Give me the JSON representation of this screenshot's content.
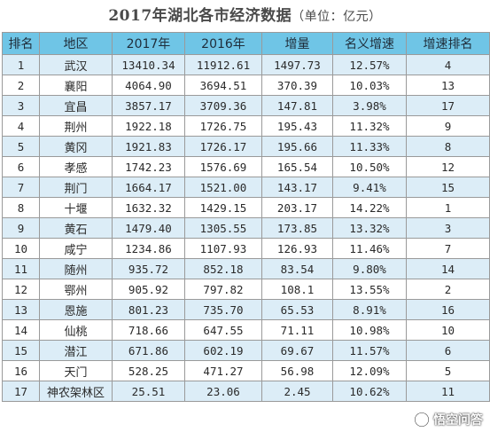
{
  "title": {
    "main": "2017年湖北各市经济数据",
    "unit": "（单位：亿元）"
  },
  "columns": [
    "排名",
    "地区",
    "2017年",
    "2016年",
    "增量",
    "名义增速",
    "增速排名"
  ],
  "rows": [
    {
      "rank": "1",
      "region": "武汉",
      "y2017": "13410.34",
      "y2016": "11912.61",
      "increase": "1497.73",
      "growth": "12.57%",
      "growth_rank": "4"
    },
    {
      "rank": "2",
      "region": "襄阳",
      "y2017": "4064.90",
      "y2016": "3694.51",
      "increase": "370.39",
      "growth": "10.03%",
      "growth_rank": "13"
    },
    {
      "rank": "3",
      "region": "宜昌",
      "y2017": "3857.17",
      "y2016": "3709.36",
      "increase": "147.81",
      "growth": "3.98%",
      "growth_rank": "17"
    },
    {
      "rank": "4",
      "region": "荆州",
      "y2017": "1922.18",
      "y2016": "1726.75",
      "increase": "195.43",
      "growth": "11.32%",
      "growth_rank": "9"
    },
    {
      "rank": "5",
      "region": "黄冈",
      "y2017": "1921.83",
      "y2016": "1726.17",
      "increase": "195.66",
      "growth": "11.33%",
      "growth_rank": "8"
    },
    {
      "rank": "6",
      "region": "孝感",
      "y2017": "1742.23",
      "y2016": "1576.69",
      "increase": "165.54",
      "growth": "10.50%",
      "growth_rank": "12"
    },
    {
      "rank": "7",
      "region": "荆门",
      "y2017": "1664.17",
      "y2016": "1521.00",
      "increase": "143.17",
      "growth": "9.41%",
      "growth_rank": "15"
    },
    {
      "rank": "8",
      "region": "十堰",
      "y2017": "1632.32",
      "y2016": "1429.15",
      "increase": "203.17",
      "growth": "14.22%",
      "growth_rank": "1"
    },
    {
      "rank": "9",
      "region": "黄石",
      "y2017": "1479.40",
      "y2016": "1305.55",
      "increase": "173.85",
      "growth": "13.32%",
      "growth_rank": "3"
    },
    {
      "rank": "10",
      "region": "咸宁",
      "y2017": "1234.86",
      "y2016": "1107.93",
      "increase": "126.93",
      "growth": "11.46%",
      "growth_rank": "7"
    },
    {
      "rank": "11",
      "region": "随州",
      "y2017": "935.72",
      "y2016": "852.18",
      "increase": "83.54",
      "growth": "9.80%",
      "growth_rank": "14"
    },
    {
      "rank": "12",
      "region": "鄂州",
      "y2017": "905.92",
      "y2016": "797.82",
      "increase": "108.1",
      "growth": "13.55%",
      "growth_rank": "2"
    },
    {
      "rank": "13",
      "region": "恩施",
      "y2017": "801.23",
      "y2016": "735.70",
      "increase": "65.53",
      "growth": "8.91%",
      "growth_rank": "16"
    },
    {
      "rank": "14",
      "region": "仙桃",
      "y2017": "718.66",
      "y2016": "647.55",
      "increase": "71.11",
      "growth": "10.98%",
      "growth_rank": "10"
    },
    {
      "rank": "15",
      "region": "潜江",
      "y2017": "671.86",
      "y2016": "602.19",
      "increase": "69.67",
      "growth": "11.57%",
      "growth_rank": "6"
    },
    {
      "rank": "16",
      "region": "天门",
      "y2017": "528.25",
      "y2016": "471.27",
      "increase": "56.98",
      "growth": "12.09%",
      "growth_rank": "5"
    },
    {
      "rank": "17",
      "region": "神农架林区",
      "y2017": "25.51",
      "y2016": "23.06",
      "increase": "2.45",
      "growth": "10.62%",
      "growth_rank": "11"
    }
  ],
  "watermark": {
    "text": "悟空问答",
    "icon": "wukong-logo-icon"
  },
  "colors": {
    "header_bg": "#6fc5e6",
    "stripe_bg": "#dcedf7",
    "border": "#9a9a9a"
  }
}
